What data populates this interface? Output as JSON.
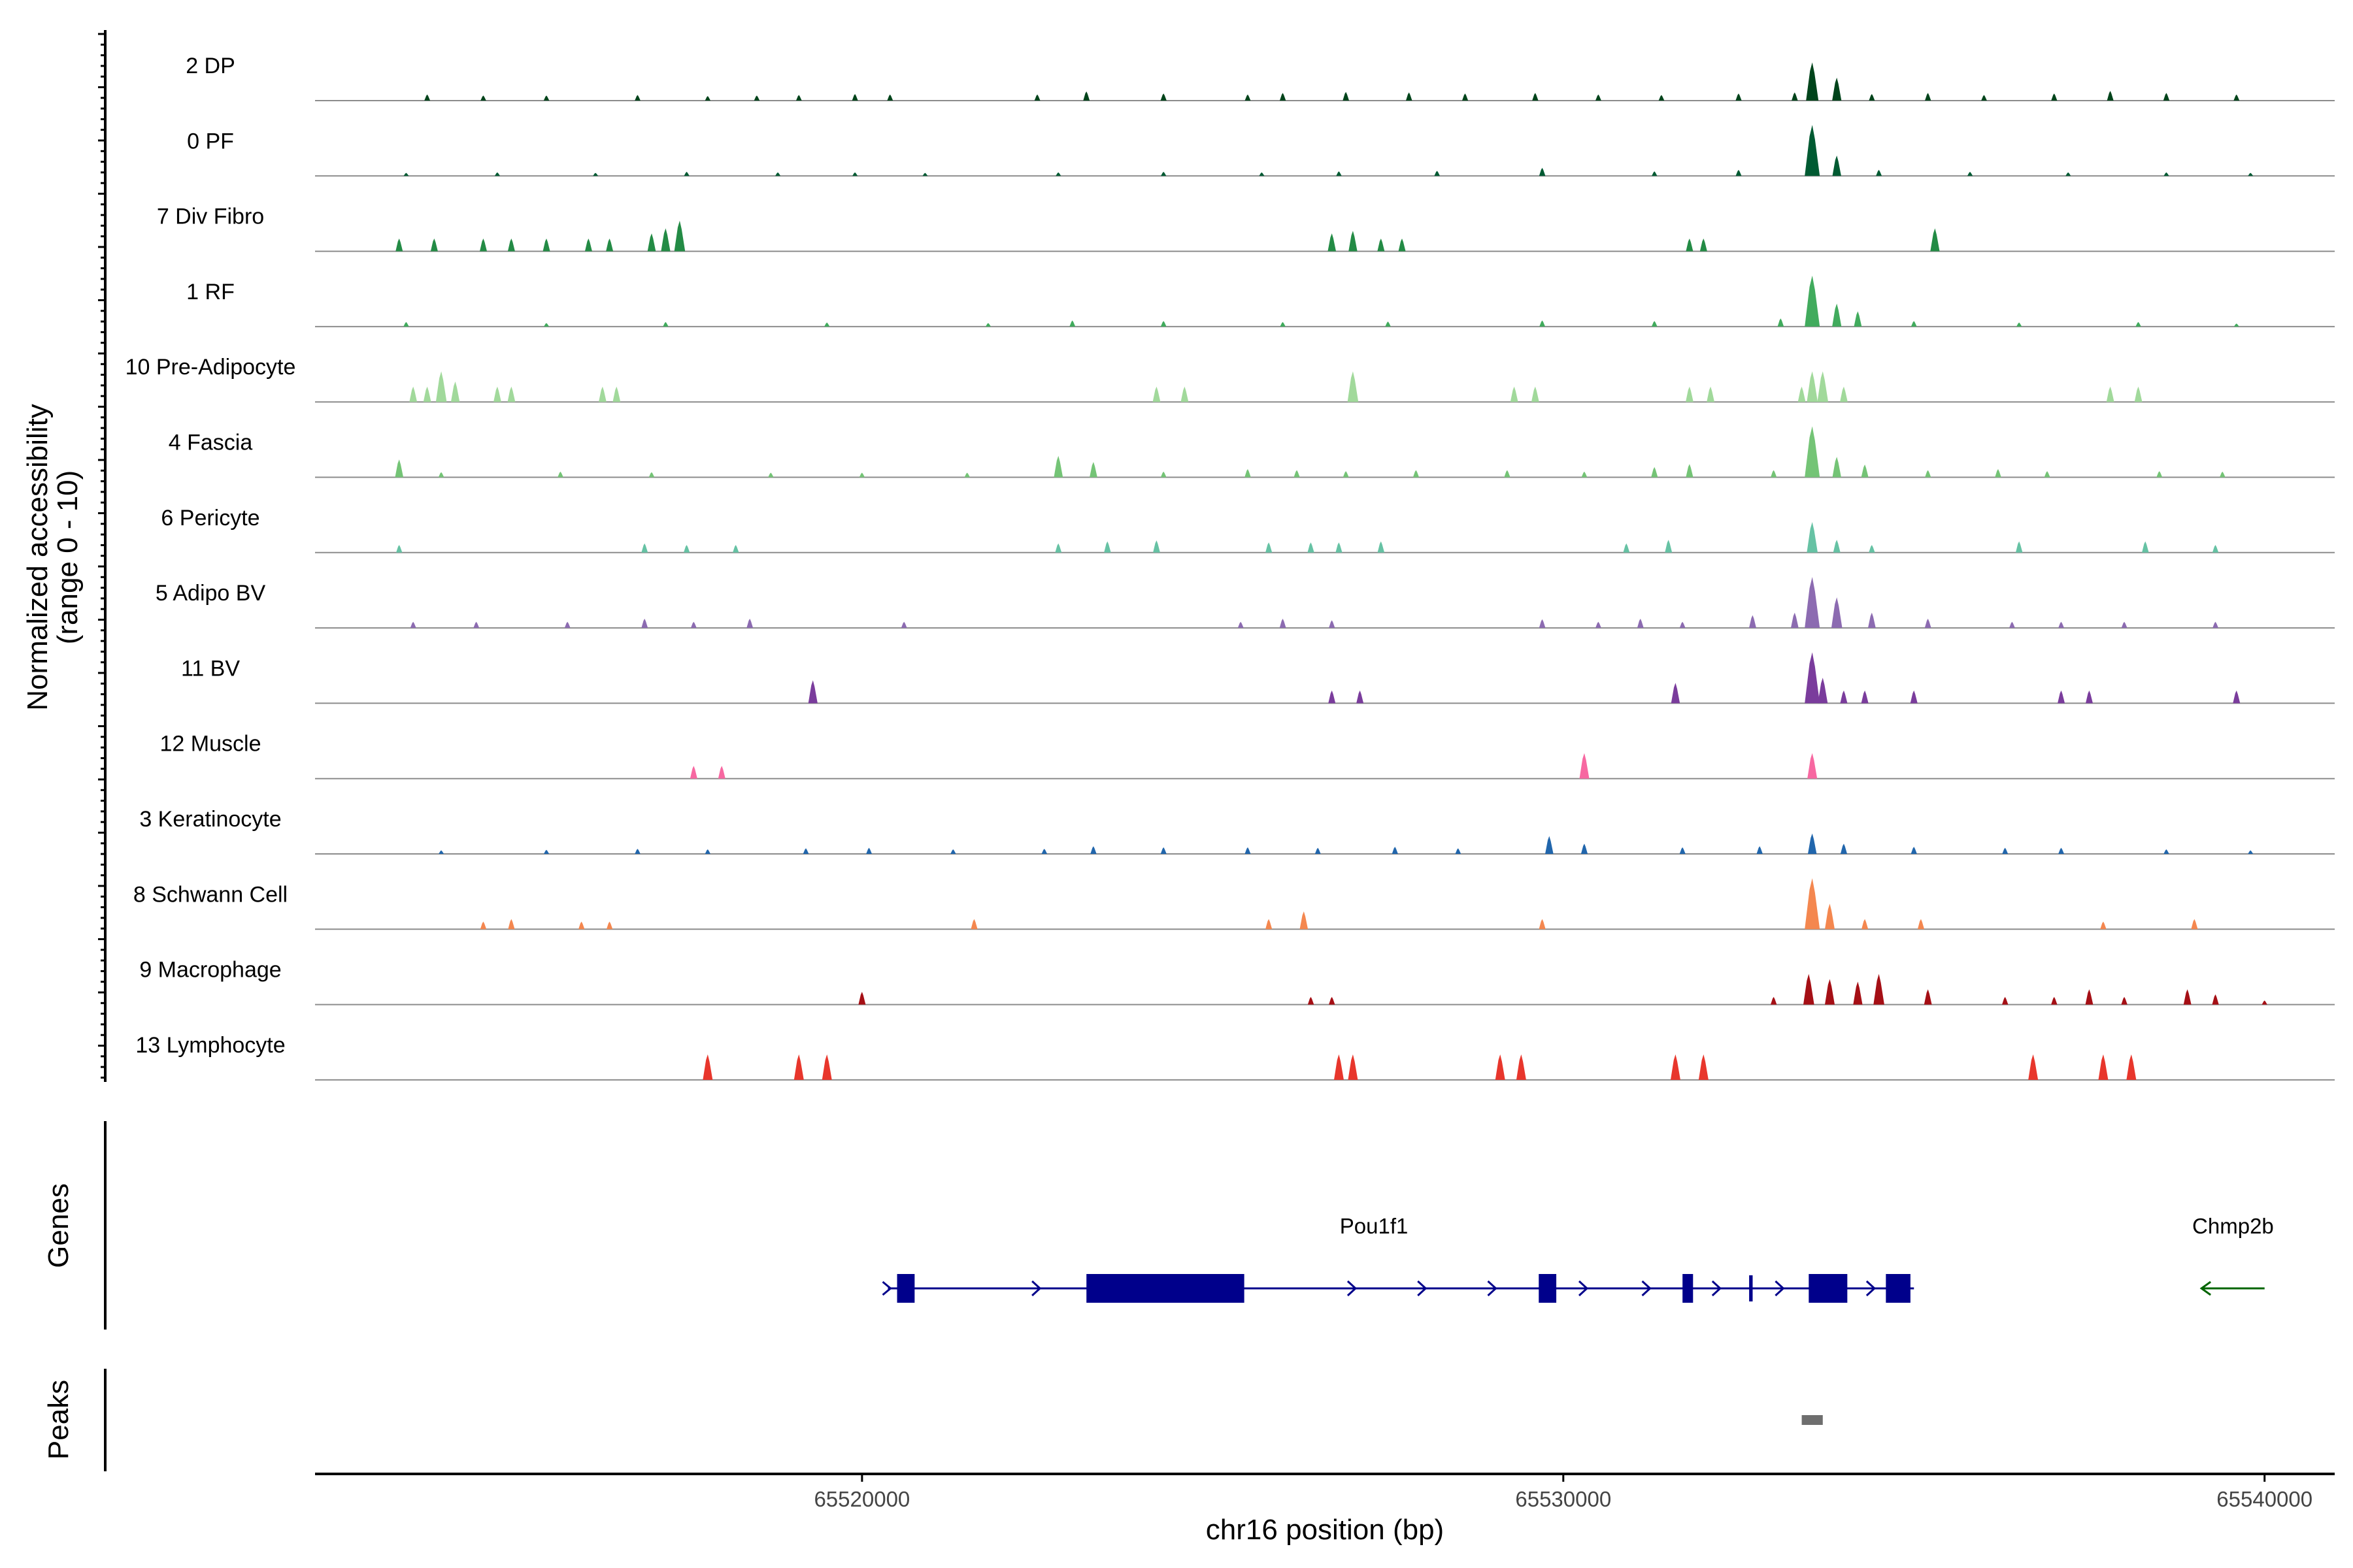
{
  "chart_data": {
    "type": "area",
    "xlabel": "chr16 position (bp)",
    "ylabel": [
      "Normalized accessibility",
      "(range 0 - 10)"
    ],
    "ylim": [
      0,
      10
    ],
    "xlim": [
      65512200,
      65541000
    ],
    "x_ticks": [
      65520000,
      65530000,
      65540000
    ],
    "tracks": [
      {
        "name": "2 DP",
        "color": "#00441b",
        "peaks": [
          [
            65513800,
            1.2
          ],
          [
            65514600,
            1
          ],
          [
            65515500,
            1
          ],
          [
            65516800,
            1.1
          ],
          [
            65517800,
            0.9
          ],
          [
            65518500,
            1
          ],
          [
            65519100,
            1.1
          ],
          [
            65519900,
            1.3
          ],
          [
            65520400,
            1.2
          ],
          [
            65522500,
            1.2
          ],
          [
            65523200,
            1.8
          ],
          [
            65524300,
            1.4
          ],
          [
            65525500,
            1.2
          ],
          [
            65526000,
            1.5
          ],
          [
            65526900,
            1.7
          ],
          [
            65527800,
            1.6
          ],
          [
            65528600,
            1.4
          ],
          [
            65529600,
            1.5
          ],
          [
            65530500,
            1.2
          ],
          [
            65531400,
            1.1
          ],
          [
            65532500,
            1.4
          ],
          [
            65533300,
            1.6
          ],
          [
            65533550,
            7.5
          ],
          [
            65533900,
            4.5
          ],
          [
            65534400,
            1.3
          ],
          [
            65535200,
            1.5
          ],
          [
            65536000,
            1.1
          ],
          [
            65537000,
            1.4
          ],
          [
            65537800,
            1.9
          ],
          [
            65538600,
            1.5
          ],
          [
            65539600,
            1.2
          ]
        ]
      },
      {
        "name": "0 PF",
        "color": "#005a32",
        "peaks": [
          [
            65513500,
            0.6
          ],
          [
            65514800,
            0.7
          ],
          [
            65516200,
            0.6
          ],
          [
            65517500,
            0.8
          ],
          [
            65518800,
            0.7
          ],
          [
            65519900,
            0.7
          ],
          [
            65520900,
            0.6
          ],
          [
            65522800,
            0.7
          ],
          [
            65524300,
            0.8
          ],
          [
            65525700,
            0.7
          ],
          [
            65526800,
            0.9
          ],
          [
            65528200,
            1
          ],
          [
            65529700,
            1.6
          ],
          [
            65531300,
            0.9
          ],
          [
            65532500,
            1.2
          ],
          [
            65533550,
            10
          ],
          [
            65533900,
            4
          ],
          [
            65534500,
            1.2
          ],
          [
            65535800,
            0.8
          ],
          [
            65537200,
            0.7
          ],
          [
            65538600,
            0.7
          ],
          [
            65539800,
            0.6
          ]
        ]
      },
      {
        "name": "7 Div Fibro",
        "color": "#238b45",
        "peaks": [
          [
            65513400,
            2.5
          ],
          [
            65513900,
            2.5
          ],
          [
            65514600,
            2.5
          ],
          [
            65515000,
            2.5
          ],
          [
            65515500,
            2.5
          ],
          [
            65516100,
            2.5
          ],
          [
            65516400,
            2.5
          ],
          [
            65517000,
            3.5
          ],
          [
            65517200,
            4.5
          ],
          [
            65517400,
            6
          ],
          [
            65526700,
            3.5
          ],
          [
            65527000,
            4
          ],
          [
            65527400,
            2.5
          ],
          [
            65527700,
            2.5
          ],
          [
            65531800,
            2.5
          ],
          [
            65532000,
            2.5
          ],
          [
            65535300,
            4.5
          ]
        ]
      },
      {
        "name": "1 RF",
        "color": "#41ab5d",
        "peaks": [
          [
            65513500,
            0.9
          ],
          [
            65515500,
            0.7
          ],
          [
            65517200,
            0.9
          ],
          [
            65519500,
            0.8
          ],
          [
            65521800,
            0.7
          ],
          [
            65523000,
            1.2
          ],
          [
            65524300,
            1.1
          ],
          [
            65526000,
            0.9
          ],
          [
            65527500,
            1
          ],
          [
            65529700,
            1.2
          ],
          [
            65531300,
            1.1
          ],
          [
            65533100,
            1.6
          ],
          [
            65533550,
            10
          ],
          [
            65533900,
            4.5
          ],
          [
            65534200,
            3
          ],
          [
            65535000,
            1.1
          ],
          [
            65536500,
            0.8
          ],
          [
            65538200,
            0.9
          ],
          [
            65539600,
            0.6
          ]
        ]
      },
      {
        "name": "10 Pre-Adipocyte",
        "color": "#a1d99b",
        "peaks": [
          [
            65513600,
            3
          ],
          [
            65513800,
            3
          ],
          [
            65514000,
            6
          ],
          [
            65514200,
            4
          ],
          [
            65514800,
            3
          ],
          [
            65515000,
            3
          ],
          [
            65516300,
            3
          ],
          [
            65516500,
            3
          ],
          [
            65524200,
            3
          ],
          [
            65524600,
            3
          ],
          [
            65527000,
            6
          ],
          [
            65529300,
            3
          ],
          [
            65529600,
            3
          ],
          [
            65531800,
            3
          ],
          [
            65532100,
            3
          ],
          [
            65533400,
            3
          ],
          [
            65533550,
            6
          ],
          [
            65533700,
            6
          ],
          [
            65534000,
            3
          ],
          [
            65537800,
            3
          ],
          [
            65538200,
            3
          ]
        ]
      },
      {
        "name": "4 Fascia",
        "color": "#74c476",
        "peaks": [
          [
            65513400,
            3.5
          ],
          [
            65514000,
            1
          ],
          [
            65515700,
            1.1
          ],
          [
            65517000,
            1
          ],
          [
            65518700,
            0.9
          ],
          [
            65520000,
            0.9
          ],
          [
            65521500,
            0.9
          ],
          [
            65522800,
            4.2
          ],
          [
            65523300,
            3
          ],
          [
            65524300,
            1.1
          ],
          [
            65525500,
            1.6
          ],
          [
            65526200,
            1.4
          ],
          [
            65526900,
            1.2
          ],
          [
            65527900,
            1.4
          ],
          [
            65529200,
            1.4
          ],
          [
            65530300,
            1.1
          ],
          [
            65531300,
            2
          ],
          [
            65531800,
            2.6
          ],
          [
            65533000,
            1.4
          ],
          [
            65533550,
            10
          ],
          [
            65533900,
            4
          ],
          [
            65534300,
            2.5
          ],
          [
            65535200,
            1.4
          ],
          [
            65536200,
            1.6
          ],
          [
            65536900,
            1.2
          ],
          [
            65538500,
            1.2
          ],
          [
            65539400,
            1.1
          ]
        ]
      },
      {
        "name": "6 Pericyte",
        "color": "#66c2a4",
        "peaks": [
          [
            65513400,
            1.5
          ],
          [
            65516900,
            1.8
          ],
          [
            65517500,
            1.5
          ],
          [
            65518200,
            1.5
          ],
          [
            65522800,
            1.8
          ],
          [
            65523500,
            2.2
          ],
          [
            65524200,
            2.4
          ],
          [
            65525800,
            2
          ],
          [
            65526400,
            2
          ],
          [
            65526800,
            2
          ],
          [
            65527400,
            2.2
          ],
          [
            65530900,
            1.8
          ],
          [
            65531500,
            2.5
          ],
          [
            65533550,
            6
          ],
          [
            65533900,
            2.5
          ],
          [
            65534400,
            1.5
          ],
          [
            65536500,
            2.2
          ],
          [
            65538300,
            2.2
          ],
          [
            65539300,
            1.5
          ]
        ]
      },
      {
        "name": "5 Adipo BV",
        "color": "#8c6bb1",
        "peaks": [
          [
            65513600,
            1.2
          ],
          [
            65514500,
            1.2
          ],
          [
            65515800,
            1.2
          ],
          [
            65516900,
            1.8
          ],
          [
            65517600,
            1.2
          ],
          [
            65518400,
            1.8
          ],
          [
            65520600,
            1.2
          ],
          [
            65525400,
            1.2
          ],
          [
            65526000,
            1.8
          ],
          [
            65526700,
            1.5
          ],
          [
            65529700,
            1.7
          ],
          [
            65530500,
            1.2
          ],
          [
            65531100,
            1.8
          ],
          [
            65531700,
            1.2
          ],
          [
            65532700,
            2.5
          ],
          [
            65533300,
            3
          ],
          [
            65533550,
            10
          ],
          [
            65533900,
            6
          ],
          [
            65534400,
            3
          ],
          [
            65535200,
            1.8
          ],
          [
            65536400,
            1.2
          ],
          [
            65537100,
            1.2
          ],
          [
            65538000,
            1.2
          ],
          [
            65539300,
            1.2
          ]
        ]
      },
      {
        "name": "11 BV",
        "color": "#7a3c9c",
        "peaks": [
          [
            65519300,
            4.5
          ],
          [
            65526700,
            2.5
          ],
          [
            65527100,
            2.5
          ],
          [
            65531600,
            4
          ],
          [
            65533550,
            10
          ],
          [
            65533700,
            5
          ],
          [
            65534000,
            2.5
          ],
          [
            65534300,
            2.5
          ],
          [
            65535000,
            2.5
          ],
          [
            65537100,
            2.5
          ],
          [
            65537500,
            2.5
          ],
          [
            65539600,
            2.5
          ]
        ]
      },
      {
        "name": "12 Muscle",
        "color": "#f768a1",
        "peaks": [
          [
            65517600,
            2.5
          ],
          [
            65518000,
            2.5
          ],
          [
            65530300,
            5
          ],
          [
            65533550,
            5
          ]
        ]
      },
      {
        "name": "3 Keratinocyte",
        "color": "#2166ac",
        "peaks": [
          [
            65514000,
            0.7
          ],
          [
            65515500,
            0.8
          ],
          [
            65516800,
            1
          ],
          [
            65517800,
            0.9
          ],
          [
            65519200,
            1.1
          ],
          [
            65520100,
            1.2
          ],
          [
            65521300,
            0.9
          ],
          [
            65522600,
            1
          ],
          [
            65523300,
            1.5
          ],
          [
            65524300,
            1.3
          ],
          [
            65525500,
            1.3
          ],
          [
            65526500,
            1.2
          ],
          [
            65527600,
            1.4
          ],
          [
            65528500,
            1.1
          ],
          [
            65529800,
            3.5
          ],
          [
            65530300,
            2
          ],
          [
            65531700,
            1.3
          ],
          [
            65532800,
            1.5
          ],
          [
            65533550,
            4
          ],
          [
            65534000,
            2
          ],
          [
            65535000,
            1.4
          ],
          [
            65536300,
            1.2
          ],
          [
            65537100,
            1.2
          ],
          [
            65538600,
            0.9
          ],
          [
            65539800,
            0.7
          ]
        ]
      },
      {
        "name": "8 Schwann Cell",
        "color": "#f4874f",
        "peaks": [
          [
            65514600,
            1.5
          ],
          [
            65515000,
            2
          ],
          [
            65516000,
            1.5
          ],
          [
            65516400,
            1.5
          ],
          [
            65521600,
            2
          ],
          [
            65525800,
            2
          ],
          [
            65526300,
            3.5
          ],
          [
            65529700,
            2
          ],
          [
            65533550,
            10
          ],
          [
            65533800,
            5
          ],
          [
            65534300,
            2
          ],
          [
            65535100,
            2
          ],
          [
            65537700,
            1.5
          ],
          [
            65539000,
            2
          ]
        ]
      },
      {
        "name": "9 Macrophage",
        "color": "#a50f15",
        "peaks": [
          [
            65520000,
            2.5
          ],
          [
            65526400,
            1.5
          ],
          [
            65526700,
            1.5
          ],
          [
            65533000,
            1.5
          ],
          [
            65533500,
            6
          ],
          [
            65533800,
            5
          ],
          [
            65534200,
            4.5
          ],
          [
            65534500,
            6
          ],
          [
            65535200,
            3
          ],
          [
            65536300,
            1.5
          ],
          [
            65537000,
            1.5
          ],
          [
            65537500,
            3
          ],
          [
            65538000,
            1.5
          ],
          [
            65538900,
            3
          ],
          [
            65539300,
            2
          ],
          [
            65540000,
            0.8
          ]
        ]
      },
      {
        "name": "13 Lymphocyte",
        "color": "#e8362c",
        "peaks": [
          [
            65517800,
            5
          ],
          [
            65519100,
            5
          ],
          [
            65519500,
            5
          ],
          [
            65526800,
            5
          ],
          [
            65527000,
            5
          ],
          [
            65529100,
            5
          ],
          [
            65529400,
            5
          ],
          [
            65531600,
            5
          ],
          [
            65532000,
            5
          ],
          [
            65536700,
            5
          ],
          [
            65537700,
            5
          ],
          [
            65538100,
            5
          ]
        ]
      }
    ],
    "genes_label": "Genes",
    "genes": [
      {
        "name": "Pou1f1",
        "strand": "+",
        "color": "#00008b",
        "start": 65520500,
        "end": 65535000,
        "exons": [
          [
            65520500,
            65520750
          ],
          [
            65523200,
            65525450
          ],
          [
            65529650,
            65529900
          ],
          [
            65531700,
            65531850
          ],
          [
            65532650,
            65532700
          ],
          [
            65533500,
            65534050
          ],
          [
            65534600,
            65534950
          ]
        ],
        "arrows": [
          65522500,
          65527000,
          65528000,
          65529000,
          65530300,
          65531200,
          65532200,
          65533100,
          65534400
        ]
      },
      {
        "name": "Chmp2b",
        "strand": "-",
        "color": "#006400",
        "start": 65539100,
        "end": 65540000,
        "exons": [],
        "arrows": []
      }
    ],
    "peaks_label": "Peaks",
    "peak_regions": [
      [
        65533400,
        65533700
      ]
    ],
    "peak_color": "#6e6e6e",
    "grid": false
  }
}
